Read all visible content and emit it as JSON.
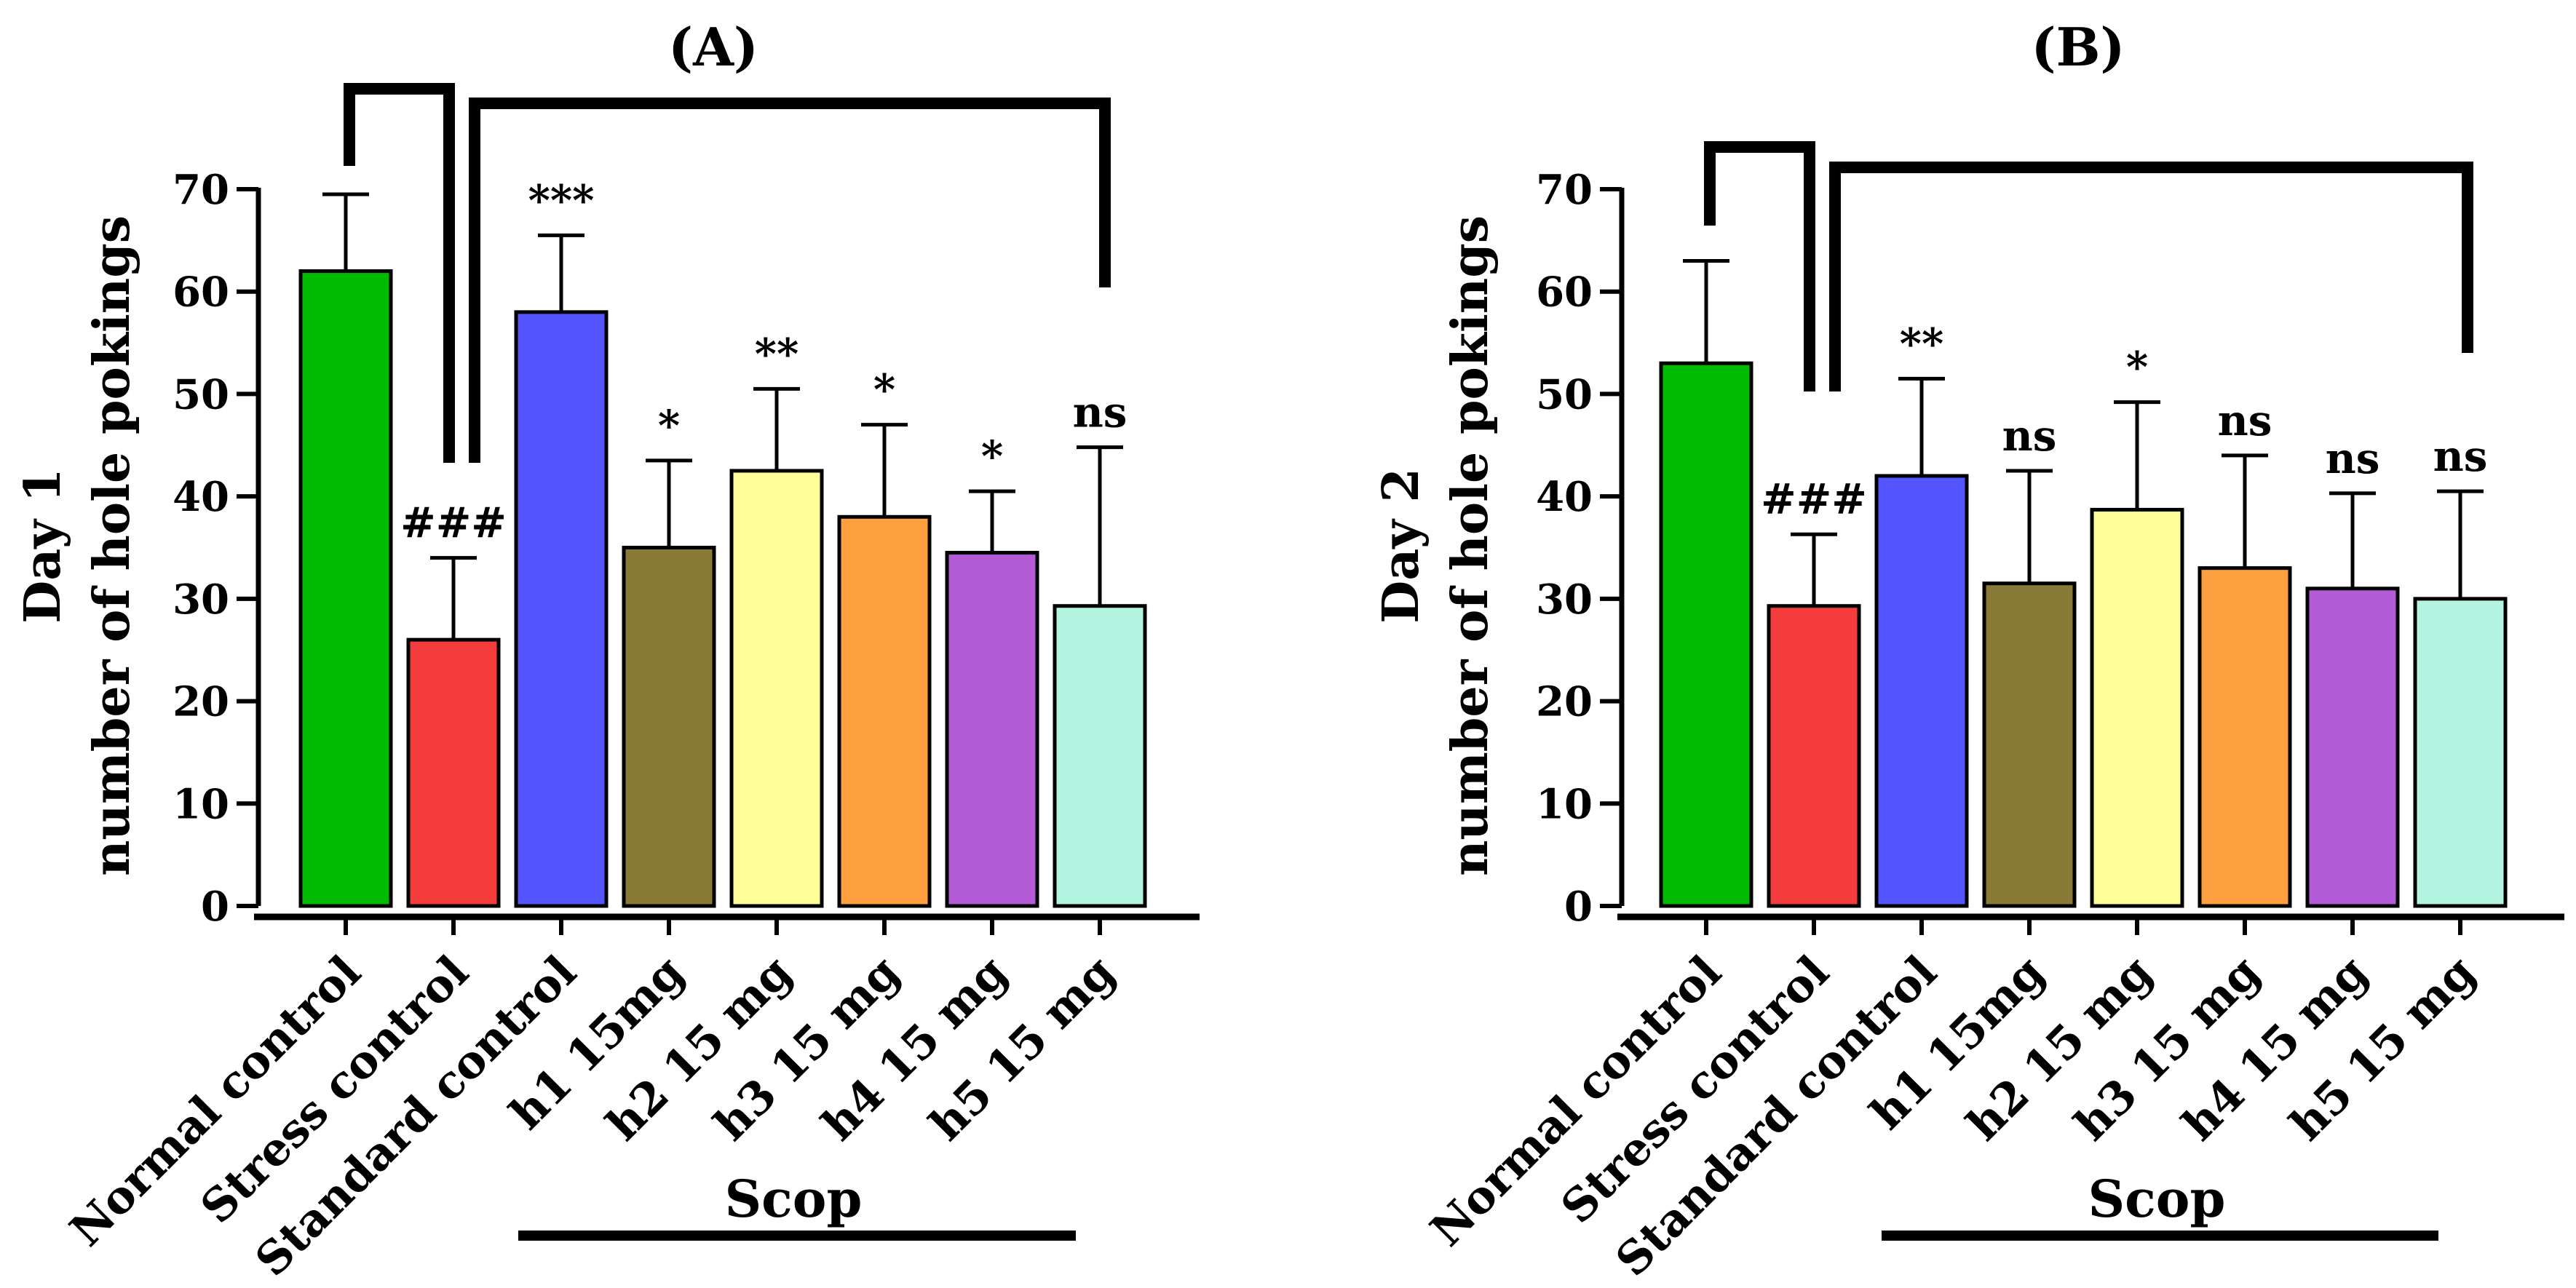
{
  "chart_data": [
    {
      "type": "bar",
      "panel_label": "(A)",
      "ylabel_line1": "Day 1",
      "ylabel_line2": "number of hole pokings",
      "ylim": [
        0,
        70
      ],
      "yticks": [
        0,
        10,
        20,
        30,
        40,
        50,
        60,
        70
      ],
      "categories": [
        "Normal control",
        "Stress control",
        "Standard control",
        "h1 15mg",
        "h2 15 mg",
        "h3 15 mg",
        "h4 15 mg",
        "h5 15 mg"
      ],
      "values": [
        62,
        26,
        58,
        35,
        42.5,
        38,
        34.5,
        29.3
      ],
      "errors": [
        7.5,
        8,
        7.5,
        8.5,
        8,
        9,
        6,
        15.5
      ],
      "colors": [
        "#00bb00",
        "#f53c3c",
        "#5555ff",
        "#8a7a38",
        "#ffff99",
        "#ffa040",
        "#b35ad6",
        "#b3f5e0"
      ],
      "significance": [
        "",
        "###",
        "***",
        "*",
        "**",
        "*",
        "*",
        "ns"
      ],
      "group_label": "Scop"
    },
    {
      "type": "bar",
      "panel_label": "(B)",
      "ylabel_line1": "Day 2",
      "ylabel_line2": "number of hole pokings",
      "ylim": [
        0,
        70
      ],
      "yticks": [
        0,
        10,
        20,
        30,
        40,
        50,
        60,
        70
      ],
      "categories": [
        "Normal control",
        "Stress control",
        "Standard control",
        "h1 15mg",
        "h2 15 mg",
        "h3 15 mg",
        "h4 15 mg",
        "h5 15 mg"
      ],
      "values": [
        53,
        29.3,
        42,
        31.5,
        38.7,
        33,
        31,
        30
      ],
      "errors": [
        10,
        7,
        9.5,
        11,
        10.5,
        11,
        9.3,
        10.5
      ],
      "colors": [
        "#00bb00",
        "#f53c3c",
        "#5555ff",
        "#8a7a38",
        "#ffff99",
        "#ffa040",
        "#b35ad6",
        "#b3f5e0"
      ],
      "significance": [
        "",
        "###",
        "**",
        "ns",
        "*",
        "ns",
        "ns",
        "ns"
      ],
      "group_label": "Scop"
    }
  ]
}
